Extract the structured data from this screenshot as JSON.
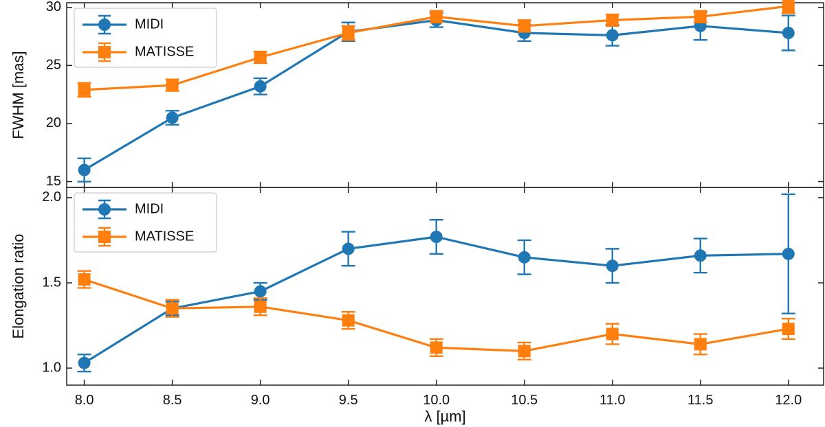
{
  "chart_data": [
    {
      "type": "line",
      "panel": "top",
      "title": "",
      "xlabel": "",
      "ylabel": "FWHM [mas]",
      "xlim": [
        7.9,
        12.2
      ],
      "ylim": [
        14.5,
        30.4
      ],
      "yticks": [
        15,
        20,
        25,
        30
      ],
      "ytick_labels": [
        "15",
        "20",
        "25",
        "30"
      ],
      "legend_position": "top-left",
      "series": [
        {
          "name": "MIDI",
          "marker": "circle",
          "x": [
            8.0,
            8.5,
            9.0,
            9.5,
            10.0,
            10.5,
            11.0,
            11.5,
            12.0
          ],
          "values": [
            16.0,
            20.5,
            23.2,
            27.9,
            28.9,
            27.8,
            27.6,
            28.4,
            27.8
          ],
          "errors": [
            1.0,
            0.6,
            0.7,
            0.8,
            0.6,
            0.7,
            0.9,
            1.2,
            1.5
          ]
        },
        {
          "name": "MATISSE",
          "marker": "square",
          "x": [
            8.0,
            8.5,
            9.0,
            9.5,
            10.0,
            10.5,
            11.0,
            11.5,
            12.0
          ],
          "values": [
            22.9,
            23.3,
            25.7,
            27.8,
            29.2,
            28.4,
            28.9,
            29.2,
            30.1
          ],
          "errors": [
            0.6,
            0.5,
            0.5,
            0.6,
            0.5,
            0.5,
            0.5,
            0.5,
            0.6
          ]
        }
      ]
    },
    {
      "type": "line",
      "panel": "bottom",
      "title": "",
      "xlabel": "λ [µm]",
      "ylabel": "Elongation ratio",
      "xlim": [
        7.9,
        12.2
      ],
      "ylim": [
        0.9,
        2.06
      ],
      "yticks": [
        1.0,
        1.5,
        2.0
      ],
      "ytick_labels": [
        "1.0",
        "1.5",
        "2.0"
      ],
      "xticks": [
        8.0,
        8.5,
        9.0,
        9.5,
        10.0,
        10.5,
        11.0,
        11.5,
        12.0
      ],
      "xtick_labels": [
        "8.0",
        "8.5",
        "9.0",
        "9.5",
        "10.0",
        "10.5",
        "11.0",
        "11.5",
        "12.0"
      ],
      "legend_position": "top-left",
      "series": [
        {
          "name": "MIDI",
          "marker": "circle",
          "x": [
            8.0,
            8.5,
            9.0,
            9.5,
            10.0,
            10.5,
            11.0,
            11.5,
            12.0
          ],
          "values": [
            1.03,
            1.35,
            1.45,
            1.7,
            1.77,
            1.65,
            1.6,
            1.66,
            1.67
          ],
          "errors": [
            0.05,
            0.04,
            0.05,
            0.1,
            0.1,
            0.1,
            0.1,
            0.1,
            0.35
          ]
        },
        {
          "name": "MATISSE",
          "marker": "square",
          "x": [
            8.0,
            8.5,
            9.0,
            9.5,
            10.0,
            10.5,
            11.0,
            11.5,
            12.0
          ],
          "values": [
            1.52,
            1.35,
            1.36,
            1.28,
            1.12,
            1.1,
            1.2,
            1.14,
            1.23
          ],
          "errors": [
            0.05,
            0.05,
            0.05,
            0.05,
            0.05,
            0.05,
            0.06,
            0.06,
            0.06
          ]
        }
      ]
    }
  ],
  "colors": {
    "midi": "#1f77b4",
    "matisse": "#ff7f0e",
    "axes": "#222222",
    "legend_border": "#cccccc"
  }
}
